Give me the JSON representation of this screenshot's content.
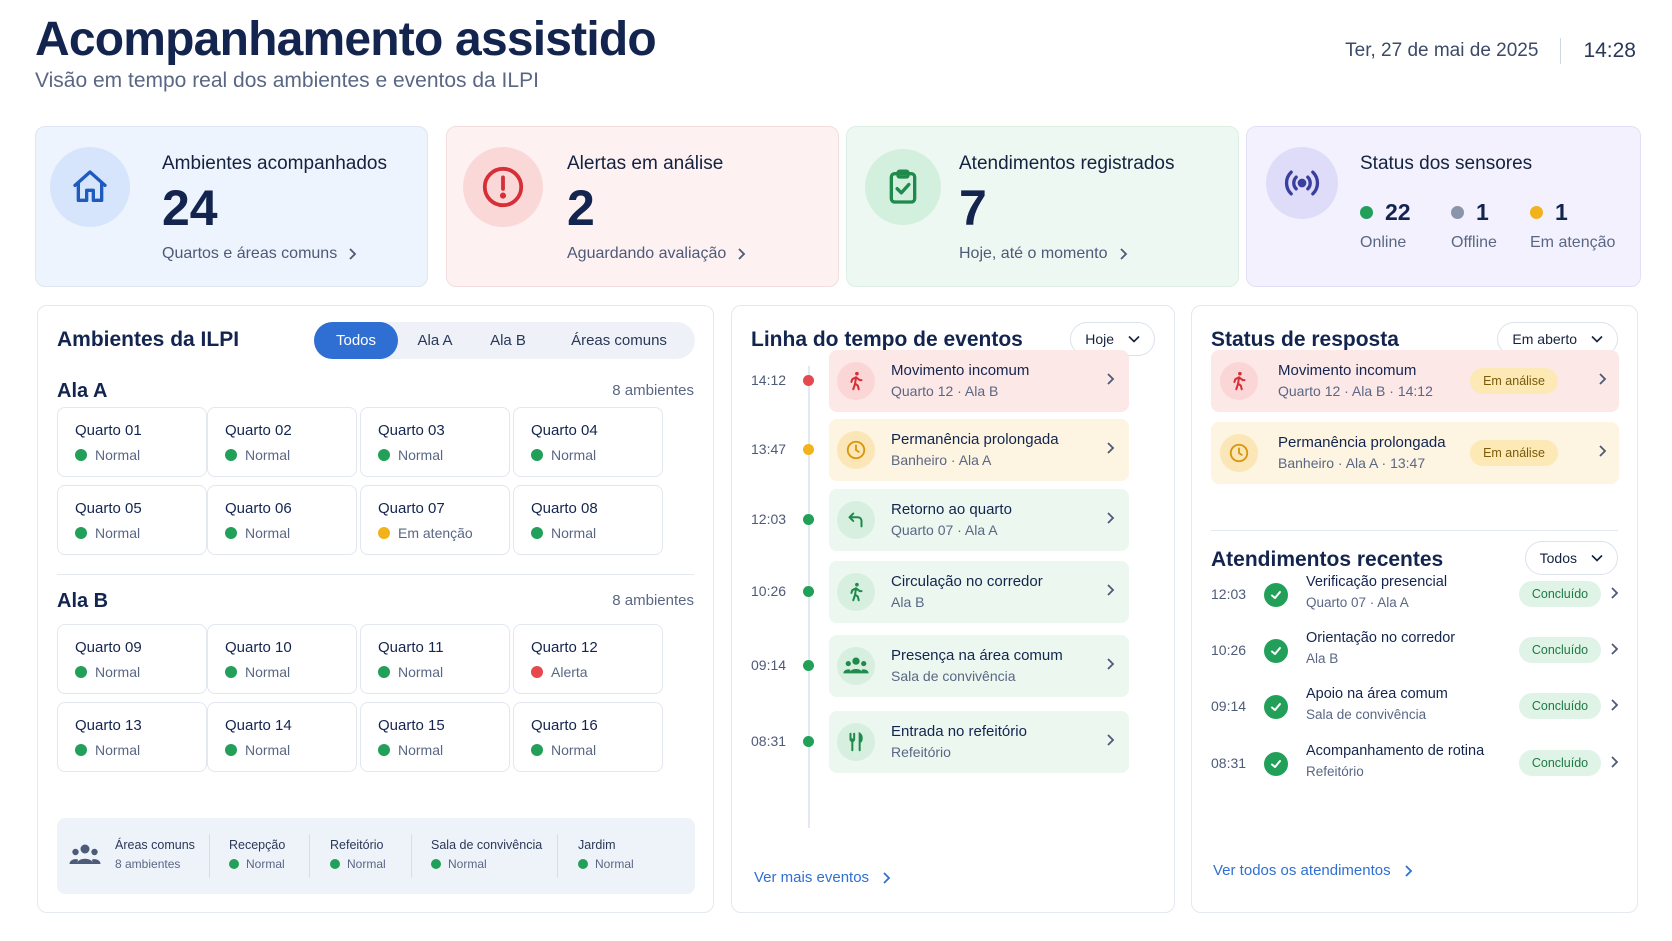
{
  "header": {
    "title": "Acompanhamento assistido",
    "subtitle": "Visão em tempo real dos ambientes e eventos da ILPI",
    "date": "Ter, 27 de mai de 2025",
    "time": "14:28"
  },
  "stats": [
    {
      "label": "Ambientes acompanhados",
      "value": "24",
      "sub": "Quartos e áreas comuns",
      "icon": "home-icon"
    },
    {
      "label": "Alertas em análise",
      "value": "2",
      "sub": "Aguardando avaliação",
      "icon": "alert-icon"
    },
    {
      "label": "Atendimentos registrados",
      "value": "7",
      "sub": "Hoje, até o momento",
      "icon": "clipboard-check-icon"
    }
  ],
  "sensors": {
    "label": "Status dos sensores",
    "icon": "signal-icon",
    "items": [
      {
        "value": "22",
        "label": "Online",
        "color": "#22a05a"
      },
      {
        "value": "1",
        "label": "Offline",
        "color": "#8b95aa"
      },
      {
        "value": "1",
        "label": "Em atenção",
        "color": "#f2b21c"
      }
    ]
  },
  "ambientes": {
    "title": "Ambientes da ILPI",
    "filters": [
      "Todos",
      "Ala A",
      "Ala B",
      "Áreas comuns"
    ],
    "active_filter": "Todos",
    "alas": [
      {
        "name": "Ala A",
        "count": "8 ambientes",
        "rooms": [
          {
            "name": "Quarto 01",
            "status": "Normal",
            "color": "#22a05a"
          },
          {
            "name": "Quarto 02",
            "status": "Normal",
            "color": "#22a05a"
          },
          {
            "name": "Quarto 03",
            "status": "Normal",
            "color": "#22a05a"
          },
          {
            "name": "Quarto 04",
            "status": "Normal",
            "color": "#22a05a"
          },
          {
            "name": "Quarto 05",
            "status": "Normal",
            "color": "#22a05a"
          },
          {
            "name": "Quarto 06",
            "status": "Normal",
            "color": "#22a05a"
          },
          {
            "name": "Quarto 07",
            "status": "Em atenção",
            "color": "#f2b21c"
          },
          {
            "name": "Quarto 08",
            "status": "Normal",
            "color": "#22a05a"
          }
        ]
      },
      {
        "name": "Ala B",
        "count": "8 ambientes",
        "rooms": [
          {
            "name": "Quarto 09",
            "status": "Normal",
            "color": "#22a05a"
          },
          {
            "name": "Quarto 10",
            "status": "Normal",
            "color": "#22a05a"
          },
          {
            "name": "Quarto 11",
            "status": "Normal",
            "color": "#22a05a"
          },
          {
            "name": "Quarto 12",
            "status": "Alerta",
            "color": "#e5484d"
          },
          {
            "name": "Quarto 13",
            "status": "Normal",
            "color": "#22a05a"
          },
          {
            "name": "Quarto 14",
            "status": "Normal",
            "color": "#22a05a"
          },
          {
            "name": "Quarto 15",
            "status": "Normal",
            "color": "#22a05a"
          },
          {
            "name": "Quarto 16",
            "status": "Normal",
            "color": "#22a05a"
          }
        ]
      }
    ],
    "common": {
      "title": "Áreas comuns",
      "count": "8 ambientes",
      "icon": "people-icon",
      "areas": [
        {
          "name": "Recepção",
          "status": "Normal"
        },
        {
          "name": "Refeitório",
          "status": "Normal"
        },
        {
          "name": "Sala de convivência",
          "status": "Normal"
        },
        {
          "name": "Jardim",
          "status": "Normal"
        }
      ]
    }
  },
  "timeline": {
    "title": "Linha do tempo de eventos",
    "filter": "Hoje",
    "events": [
      {
        "time": "14:12",
        "title": "Movimento incomum",
        "sub": "Quarto 12 · Ala B",
        "tone": "red",
        "icon": "walking-person-icon"
      },
      {
        "time": "13:47",
        "title": "Permanência prolongada",
        "sub": "Banheiro · Ala A",
        "tone": "yellow",
        "icon": "clock-icon"
      },
      {
        "time": "12:03",
        "title": "Retorno ao quarto",
        "sub": "Quarto 07 · Ala A",
        "tone": "green",
        "icon": "return-arrow-icon"
      },
      {
        "time": "10:26",
        "title": "Circulação no corredor",
        "sub": "Ala B",
        "tone": "green",
        "icon": "walking-person-icon"
      },
      {
        "time": "09:14",
        "title": "Presença na área comum",
        "sub": "Sala de convivência",
        "tone": "green",
        "icon": "people-icon"
      },
      {
        "time": "08:31",
        "title": "Entrada no refeitório",
        "sub": "Refeitório",
        "tone": "green",
        "icon": "utensils-icon"
      }
    ],
    "more": "Ver mais eventos"
  },
  "resposta": {
    "title": "Status de resposta",
    "filter": "Em aberto",
    "items": [
      {
        "title": "Movimento incomum",
        "sub": "Quarto 12 · Ala B · 14:12",
        "badge": "Em análise",
        "tone": "red",
        "icon": "walking-person-icon"
      },
      {
        "title": "Permanência prolongada",
        "sub": "Banheiro · Ala A · 13:47",
        "badge": "Em análise",
        "tone": "yellow",
        "icon": "clock-icon"
      }
    ]
  },
  "atendimentos": {
    "title": "Atendimentos recentes",
    "filter": "Todos",
    "items": [
      {
        "time": "12:03",
        "title": "Verificação presencial",
        "sub": "Quarto 07 · Ala A",
        "badge": "Concluído"
      },
      {
        "time": "10:26",
        "title": "Orientação no corredor",
        "sub": "Ala B",
        "badge": "Concluído"
      },
      {
        "time": "09:14",
        "title": "Apoio na área comum",
        "sub": "Sala de convivência",
        "badge": "Concluído"
      },
      {
        "time": "08:31",
        "title": "Acompanhamento de rotina",
        "sub": "Refeitório",
        "badge": "Concluído"
      }
    ],
    "more": "Ver todos os atendimentos"
  },
  "colors": {
    "primary": "#2f6fd3",
    "normal": "#22a05a",
    "attention": "#f2b21c",
    "alert": "#e5484d",
    "offline": "#8b95aa"
  }
}
